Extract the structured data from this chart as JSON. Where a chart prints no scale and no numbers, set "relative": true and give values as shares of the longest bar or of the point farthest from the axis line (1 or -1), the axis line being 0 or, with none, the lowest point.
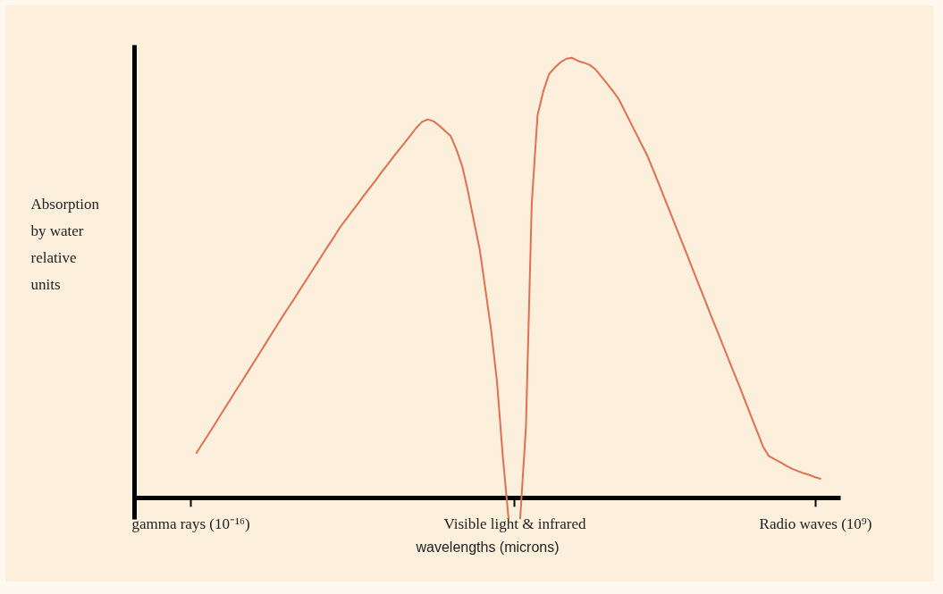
{
  "chart_data": {
    "type": "line",
    "relative": true,
    "xlabel": "wavelengths (microns)",
    "ylabel": "Absorption by water relative units",
    "categories": [
      "gamma rays (10⁻¹⁶)",
      null,
      null,
      null,
      null,
      null,
      null,
      null,
      null,
      null,
      null,
      null,
      null,
      null,
      null,
      null,
      null,
      null,
      null,
      null,
      null,
      null,
      null,
      null,
      null,
      null,
      null,
      null,
      null,
      null,
      null,
      null,
      null,
      null,
      null,
      null,
      null,
      null,
      null,
      null,
      null,
      null,
      null,
      null,
      null,
      null,
      null,
      null,
      null,
      null,
      null,
      null,
      null,
      null,
      null,
      null,
      "Visible light & infrared",
      null,
      null,
      null,
      null,
      null,
      null,
      null,
      null,
      null,
      null,
      null,
      null,
      null,
      null,
      null,
      null,
      null,
      null,
      null,
      null,
      null,
      null,
      null,
      null,
      null,
      null,
      null,
      null,
      null,
      null,
      null,
      null,
      null,
      null,
      null,
      null,
      null,
      null,
      null,
      null,
      null,
      null,
      null,
      null,
      null,
      null,
      null,
      null,
      null,
      null,
      null,
      "Radio waves (10⁹)",
      null
    ],
    "grid": false,
    "legend": false,
    "series": [
      {
        "color": "#e07050",
        "values": [
          null,
          0.1,
          0.121,
          0.141,
          0.162,
          0.183,
          0.204,
          0.225,
          0.246,
          0.266,
          0.287,
          0.308,
          0.329,
          0.35,
          0.371,
          0.392,
          0.413,
          0.433,
          0.453,
          0.474,
          0.494,
          0.515,
          0.535,
          0.556,
          0.576,
          0.596,
          0.617,
          0.634,
          0.652,
          0.669,
          0.687,
          0.704,
          0.721,
          0.739,
          0.756,
          0.773,
          0.79,
          0.806,
          0.823,
          0.84,
          0.854,
          0.86,
          0.856,
          0.846,
          0.834,
          0.822,
          0.791,
          0.753,
          0.695,
          0.629,
          0.565,
          0.473,
          0.379,
          0.263,
          0.094,
          -0.049,
          null,
          -0.049,
          0.16,
          0.667,
          0.869,
          0.924,
          0.963,
          0.978,
          0.99,
          0.998,
          1,
          0.993,
          0.989,
          0.984,
          0.974,
          0.958,
          0.942,
          0.925,
          0.907,
          0.881,
          0.855,
          0.829,
          0.803,
          0.777,
          0.745,
          0.712,
          0.679,
          0.646,
          0.613,
          0.58,
          0.547,
          0.513,
          0.48,
          0.447,
          0.413,
          0.381,
          0.348,
          0.315,
          0.282,
          0.25,
          0.216,
          0.182,
          0.149,
          0.115,
          0.094,
          0.087,
          0.08,
          0.072,
          0.065,
          0.06,
          0.055,
          0.051,
          0.046,
          0.042
        ]
      }
    ]
  }
}
